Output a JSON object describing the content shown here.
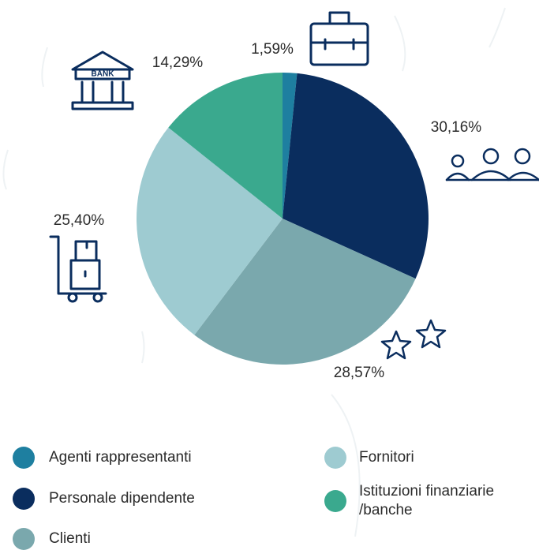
{
  "chart_data": {
    "type": "pie",
    "categories": [
      "Agenti rappresentanti",
      "Personale dipendente",
      "Clienti",
      "Fornitori",
      "Istituzioni finanziarie /banche"
    ],
    "values": [
      1.59,
      30.16,
      28.57,
      25.4,
      14.29
    ],
    "value_labels": [
      "1,59%",
      "30,16%",
      "28,57%",
      "25,40%",
      "14,29%"
    ],
    "colors": [
      "#1e7fa0",
      "#0a2d5e",
      "#7aa8ad",
      "#9ecbd1",
      "#3aa98e"
    ]
  }
}
